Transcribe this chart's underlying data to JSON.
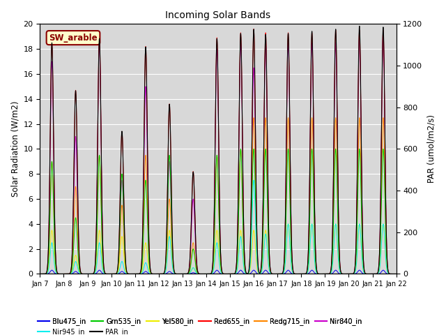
{
  "title": "Incoming Solar Bands",
  "ylabel_left": "Solar Radiation (W/m2)",
  "ylabel_right": "PAR (umol/m2/s)",
  "xlim_days": [
    7,
    22
  ],
  "ylim_left": [
    0,
    20
  ],
  "ylim_right": [
    0,
    1200
  ],
  "annotation_text": "SW_arable",
  "annotation_bg": "#ffffcc",
  "annotation_fg": "#8b0000",
  "background_color": "#d8d8d8",
  "n_points": 6000,
  "peak_sigma": 0.07,
  "peaks": [
    {
      "day": 7.5,
      "par": 1110,
      "red": 18.5,
      "nir840": 17.0,
      "redg": 9.0,
      "grn": 9.0,
      "nir945": 2.5,
      "yel": 3.5,
      "blu": 0.3
    },
    {
      "day": 8.5,
      "par": 880,
      "red": 14.7,
      "nir840": 11.0,
      "redg": 7.0,
      "grn": 4.5,
      "nir945": 1.0,
      "yel": 1.5,
      "blu": 0.2
    },
    {
      "day": 9.5,
      "par": 1130,
      "red": 19.0,
      "nir840": 18.5,
      "redg": 9.5,
      "grn": 9.5,
      "nir945": 2.5,
      "yel": 3.5,
      "blu": 0.3
    },
    {
      "day": 10.45,
      "par": 685,
      "red": 11.4,
      "nir840": 7.5,
      "redg": 5.5,
      "grn": 8.0,
      "nir945": 1.0,
      "yel": 3.0,
      "blu": 0.2
    },
    {
      "day": 11.45,
      "par": 1090,
      "red": 18.2,
      "nir840": 15.0,
      "redg": 9.5,
      "grn": 7.5,
      "nir945": 0.9,
      "yel": 2.5,
      "blu": 0.2
    },
    {
      "day": 12.45,
      "par": 815,
      "red": 13.6,
      "nir840": 9.0,
      "redg": 6.0,
      "grn": 9.5,
      "nir945": 3.0,
      "yel": 3.5,
      "blu": 0.2
    },
    {
      "day": 13.45,
      "par": 490,
      "red": 8.2,
      "nir840": 6.0,
      "redg": 2.5,
      "grn": 2.0,
      "nir945": 0.5,
      "yel": 0.5,
      "blu": 0.1
    },
    {
      "day": 14.45,
      "par": 1130,
      "red": 18.9,
      "nir840": 18.0,
      "redg": 9.5,
      "grn": 9.5,
      "nir945": 2.5,
      "yel": 3.5,
      "blu": 0.3
    },
    {
      "day": 15.45,
      "par": 1155,
      "red": 19.3,
      "nir840": 18.5,
      "redg": 10.0,
      "grn": 10.0,
      "nir945": 3.0,
      "yel": 3.5,
      "blu": 0.3
    },
    {
      "day": 16.0,
      "par": 1175,
      "red": 19.6,
      "nir840": 16.5,
      "redg": 12.5,
      "grn": 10.0,
      "nir945": 7.5,
      "yel": 3.5,
      "blu": 0.3
    },
    {
      "day": 16.5,
      "par": 1150,
      "red": 19.3,
      "nir840": 18.5,
      "redg": 12.5,
      "grn": 10.0,
      "nir945": 3.2,
      "yel": 3.5,
      "blu": 0.3
    },
    {
      "day": 17.45,
      "par": 1155,
      "red": 19.3,
      "nir840": 18.5,
      "redg": 12.5,
      "grn": 10.0,
      "nir945": 4.0,
      "yel": 4.0,
      "blu": 0.3
    },
    {
      "day": 18.45,
      "par": 1165,
      "red": 19.3,
      "nir840": 18.5,
      "redg": 12.5,
      "grn": 10.0,
      "nir945": 4.0,
      "yel": 4.0,
      "blu": 0.3
    },
    {
      "day": 19.45,
      "par": 1175,
      "red": 19.5,
      "nir840": 18.5,
      "redg": 12.5,
      "grn": 10.0,
      "nir945": 4.0,
      "yel": 4.0,
      "blu": 0.3
    },
    {
      "day": 20.45,
      "par": 1190,
      "red": 19.5,
      "nir840": 19.0,
      "redg": 12.5,
      "grn": 10.0,
      "nir945": 4.0,
      "yel": 4.0,
      "blu": 0.3
    },
    {
      "day": 21.45,
      "par": 1185,
      "red": 19.5,
      "nir840": 19.0,
      "redg": 12.5,
      "grn": 10.0,
      "nir945": 4.0,
      "yel": 4.0,
      "blu": 0.3
    }
  ],
  "xticks": [
    7,
    8,
    9,
    10,
    11,
    12,
    13,
    14,
    15,
    16,
    17,
    18,
    19,
    20,
    21,
    22
  ],
  "xtick_labels": [
    "Jan 7",
    "Jan 8",
    "Jan 9",
    "Jan 10",
    "Jan 11",
    "Jan 12",
    "Jan 13",
    "Jan 14",
    "Jan 15",
    "Jan 16",
    "Jan 17",
    "Jan 18",
    "Jan 19",
    "Jan 20",
    "Jan 21",
    "Jan 22"
  ],
  "yticks_left": [
    0,
    2,
    4,
    6,
    8,
    10,
    12,
    14,
    16,
    18,
    20
  ],
  "yticks_right": [
    0,
    200,
    400,
    600,
    800,
    1000,
    1200
  ],
  "series_order": [
    "nir840",
    "redg",
    "red",
    "grn",
    "yel",
    "blu",
    "nir945"
  ],
  "series_colors": {
    "blu": "#0000ee",
    "grn": "#00cc00",
    "yel": "#eeee00",
    "red": "#ff0000",
    "redg": "#ff8800",
    "nir840": "#cc00cc",
    "nir945": "#00eeee",
    "par": "#000000"
  },
  "legend_labels": {
    "blu": "Blu475_in",
    "grn": "Grn535_in",
    "yel": "Yel580_in",
    "red": "Red655_in",
    "redg": "Redg715_in",
    "nir840": "Nir840_in",
    "nir945": "Nir945_in",
    "par": "PAR_in"
  }
}
